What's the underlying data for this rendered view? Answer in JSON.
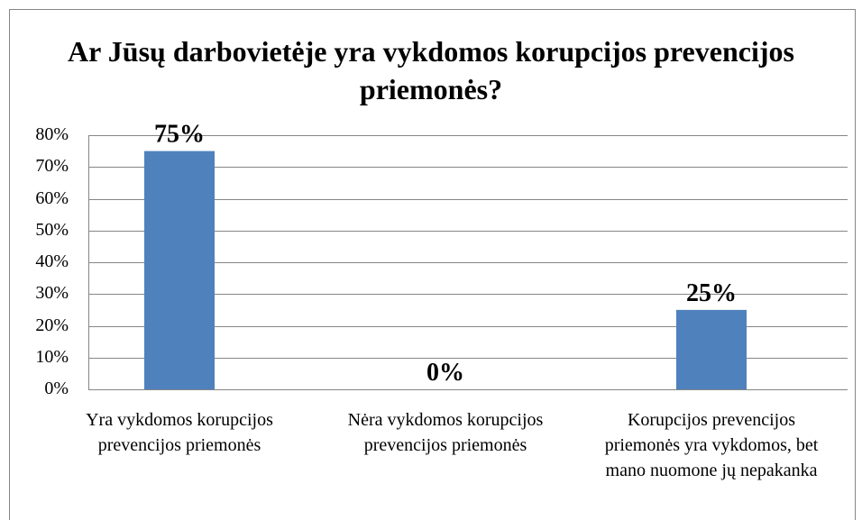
{
  "chart_data": {
    "type": "bar",
    "title": "Ar Jūsų darbovietėje yra vykdomos korupcijos prevencijos priemonės?",
    "categories": [
      "Yra vykdomos korupcijos prevencijos priemonės",
      "Nėra vykdomos korupcijos prevencijos priemonės",
      "Korupcijos prevencijos priemonės yra vykdomos, bet mano nuomone jų nepakanka"
    ],
    "values": [
      75,
      0,
      25
    ],
    "value_labels": [
      "75%",
      "0%",
      "25%"
    ],
    "color": "#4f81bd",
    "ylim": [
      0,
      80
    ],
    "yticks": [
      {
        "value": 0,
        "label": "0%"
      },
      {
        "value": 10,
        "label": "10%"
      },
      {
        "value": 20,
        "label": "20%"
      },
      {
        "value": 30,
        "label": "30%"
      },
      {
        "value": 40,
        "label": "40%"
      },
      {
        "value": 50,
        "label": "50%"
      },
      {
        "value": 60,
        "label": "60%"
      },
      {
        "value": 70,
        "label": "70%"
      },
      {
        "value": 80,
        "label": "80%"
      }
    ],
    "grid": true
  }
}
